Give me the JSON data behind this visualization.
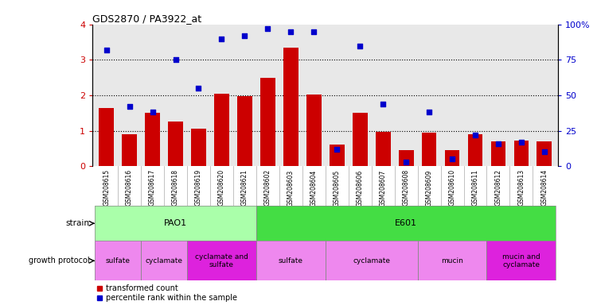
{
  "title": "GDS2870 / PA3922_at",
  "samples": [
    "GSM208615",
    "GSM208616",
    "GSM208617",
    "GSM208618",
    "GSM208619",
    "GSM208620",
    "GSM208621",
    "GSM208602",
    "GSM208603",
    "GSM208604",
    "GSM208605",
    "GSM208606",
    "GSM208607",
    "GSM208608",
    "GSM208609",
    "GSM208610",
    "GSM208611",
    "GSM208612",
    "GSM208613",
    "GSM208614"
  ],
  "transformed_count": [
    1.65,
    0.9,
    1.5,
    1.25,
    1.05,
    2.05,
    1.97,
    2.5,
    3.35,
    2.02,
    0.6,
    1.5,
    0.97,
    0.45,
    0.95,
    0.45,
    0.9,
    0.7,
    0.72,
    0.7
  ],
  "percentile_rank": [
    82,
    42,
    38,
    75,
    55,
    90,
    92,
    97,
    95,
    95,
    12,
    85,
    44,
    3,
    38,
    5,
    22,
    16,
    17,
    10
  ],
  "ylim_left": [
    0,
    4
  ],
  "ylim_right": [
    0,
    100
  ],
  "yticks_left": [
    0,
    1,
    2,
    3,
    4
  ],
  "yticks_right": [
    0,
    25,
    50,
    75,
    100
  ],
  "bar_color": "#cc0000",
  "dot_color": "#0000cc",
  "background_color": "#ffffff",
  "plot_bg_color": "#e8e8e8",
  "grid_color": "#000000",
  "pao1_color": "#aaffaa",
  "e601_color": "#44dd44",
  "proto_light_color": "#ee88ee",
  "proto_dark_color": "#dd22dd",
  "strain_segments": [
    {
      "label": "PAO1",
      "start": 0,
      "end": 6,
      "color": "#aaffaa"
    },
    {
      "label": "E601",
      "start": 7,
      "end": 19,
      "color": "#44dd44"
    }
  ],
  "protocol_segments": [
    {
      "label": "sulfate",
      "start": 0,
      "end": 1,
      "color": "#ee88ee"
    },
    {
      "label": "cyclamate",
      "start": 2,
      "end": 3,
      "color": "#ee88ee"
    },
    {
      "label": "cyclamate and\nsulfate",
      "start": 4,
      "end": 6,
      "color": "#dd22dd"
    },
    {
      "label": "sulfate",
      "start": 7,
      "end": 9,
      "color": "#ee88ee"
    },
    {
      "label": "cyclamate",
      "start": 10,
      "end": 13,
      "color": "#ee88ee"
    },
    {
      "label": "mucin",
      "start": 14,
      "end": 16,
      "color": "#ee88ee"
    },
    {
      "label": "mucin and\ncyclamate",
      "start": 17,
      "end": 19,
      "color": "#dd22dd"
    }
  ]
}
